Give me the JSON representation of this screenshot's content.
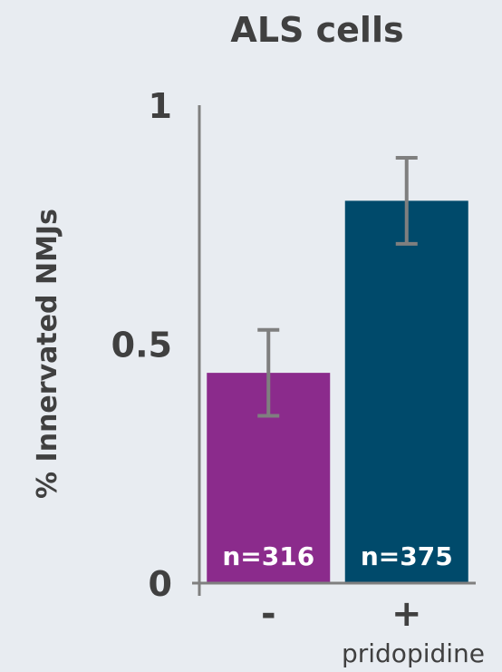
{
  "chart_data": {
    "type": "bar",
    "title": "ALS cells",
    "ylabel": "% Innervated NMJs",
    "xlabel": "pridopidine",
    "categories": [
      "-",
      "+"
    ],
    "values": [
      0.44,
      0.8
    ],
    "error": [
      0.09,
      0.09
    ],
    "sample_labels": [
      "n=316",
      "n=375"
    ],
    "bar_colors": [
      "#8b2b8c",
      "#004a6b"
    ],
    "error_color": "#7f7f7f",
    "axis_color": "#7f7f7f",
    "ylim": [
      0,
      1
    ],
    "yticks": [
      "0",
      "0.5",
      "1"
    ],
    "grid": false,
    "legend": "none"
  }
}
